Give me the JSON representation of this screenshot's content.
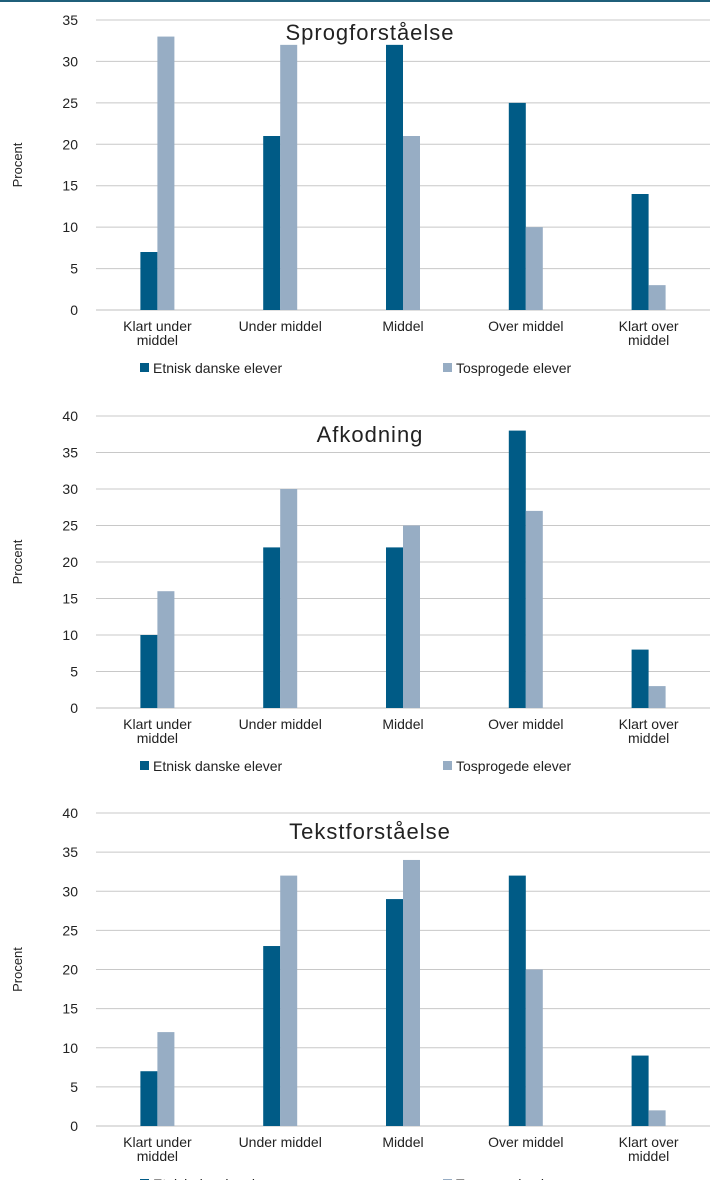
{
  "colors": {
    "etnisk": "#005b86",
    "tosprogede": "#97adc4",
    "grid": "#c8c8c8",
    "axis": "#bfbfbf"
  },
  "chart_data": [
    {
      "type": "bar",
      "title": "Sprogforståelse",
      "ylabel": "Procent",
      "ylim": [
        0,
        35
      ],
      "yticks": [
        0,
        5,
        10,
        15,
        20,
        25,
        30,
        35
      ],
      "categories": [
        "Klart under middel",
        "Under middel",
        "Middel",
        "Over middel",
        "Klart over middel"
      ],
      "series": [
        {
          "name": "Etnisk danske elever",
          "values": [
            7,
            21,
            32,
            25,
            14
          ]
        },
        {
          "name": "Tosprogede elever",
          "values": [
            33,
            32,
            21,
            10,
            3
          ]
        }
      ],
      "legend": "bottom",
      "grid": true
    },
    {
      "type": "bar",
      "title": "Afkodning",
      "ylabel": "Procent",
      "ylim": [
        0,
        40
      ],
      "yticks": [
        0,
        5,
        10,
        15,
        20,
        25,
        30,
        35,
        40
      ],
      "categories": [
        "Klart under middel",
        "Under middel",
        "Middel",
        "Over middel",
        "Klart over middel"
      ],
      "series": [
        {
          "name": "Etnisk danske elever",
          "values": [
            10,
            22,
            22,
            38,
            8
          ]
        },
        {
          "name": "Tosprogede elever",
          "values": [
            16,
            30,
            25,
            27,
            3
          ]
        }
      ],
      "legend": "bottom",
      "grid": true
    },
    {
      "type": "bar",
      "title": "Tekstforståelse",
      "ylabel": "Procent",
      "ylim": [
        0,
        40
      ],
      "yticks": [
        0,
        5,
        10,
        15,
        20,
        25,
        30,
        35,
        40
      ],
      "categories": [
        "Klart under middel",
        "Under middel",
        "Middel",
        "Over middel",
        "Klart over middel"
      ],
      "series": [
        {
          "name": "Etnisk danske elever",
          "values": [
            7,
            23,
            29,
            32,
            9
          ]
        },
        {
          "name": "Tosprogede elever",
          "values": [
            12,
            32,
            34,
            20,
            2
          ]
        }
      ],
      "legend": "bottom",
      "grid": true
    }
  ]
}
